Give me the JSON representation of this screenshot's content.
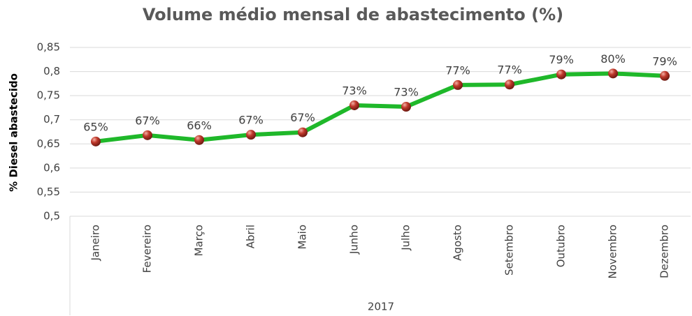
{
  "chart_data": {
    "type": "line",
    "title": "Volume médio mensal de abastecimento (%)",
    "y_label": "% Diesel abastecido",
    "x_group_label": "2017",
    "categories": [
      "Janeiro",
      "Fevereiro",
      "Março",
      "Abril",
      "Maio",
      "Junho",
      "Julho",
      "Agosto",
      "Setembro",
      "Outubro",
      "Novembro",
      "Dezembro"
    ],
    "series": [
      {
        "name": "% Diesel abastecido",
        "color": "#1fb82a",
        "marker_color": "#c0392b",
        "values": [
          0.655,
          0.668,
          0.658,
          0.669,
          0.674,
          0.73,
          0.727,
          0.772,
          0.773,
          0.794,
          0.796,
          0.791
        ],
        "value_labels": [
          "65%",
          "67%",
          "66%",
          "67%",
          "67%",
          "73%",
          "73%",
          "77%",
          "77%",
          "79%",
          "80%",
          "79%"
        ]
      }
    ],
    "ylim": [
      0.5,
      0.85
    ],
    "yticks": [
      {
        "value": 0.5,
        "label": "0,5"
      },
      {
        "value": 0.55,
        "label": "0,55"
      },
      {
        "value": 0.6,
        "label": "0,6"
      },
      {
        "value": 0.65,
        "label": "0,65"
      },
      {
        "value": 0.7,
        "label": "0,7"
      },
      {
        "value": 0.75,
        "label": "0,75"
      },
      {
        "value": 0.8,
        "label": "0,8"
      },
      {
        "value": 0.85,
        "label": "0,85"
      }
    ],
    "grid": true
  }
}
